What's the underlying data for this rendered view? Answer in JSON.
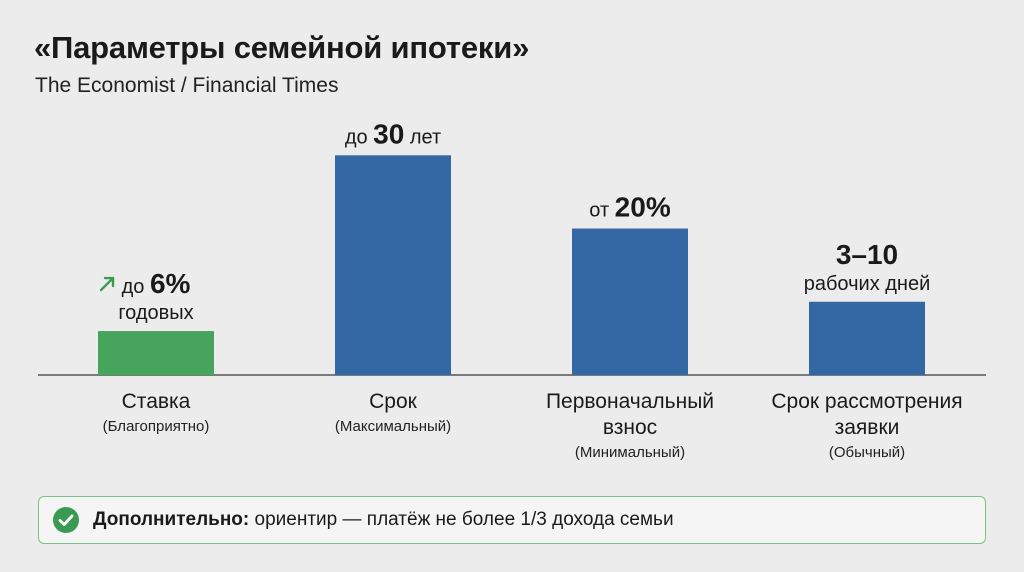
{
  "title": "«Параметры семейной ипотеки»",
  "subtitle": "The Economist / Financial Times",
  "colors": {
    "green": "#47a45c",
    "blue": "#3468a4",
    "axis": "#555555",
    "trend_arrow": "#3a9a52"
  },
  "chart_data": {
    "type": "bar",
    "title": "«Параметры семейной ипотеки»",
    "subtitle": "The Economist / Financial Times",
    "xlabel": "",
    "ylabel": "",
    "grid": false,
    "categories": [
      [
        "Ставка"
      ],
      [
        "Срок"
      ],
      [
        "Первоначальный",
        "взнос"
      ],
      [
        "Срок рассмотрения",
        "заявки"
      ]
    ],
    "category_notes": [
      "(Благоприятно)",
      "(Максимальный)",
      "(Минимальный)",
      "(Обычный)"
    ],
    "values": [
      6,
      30,
      20,
      10
    ],
    "bar_colors": [
      "#47a45c",
      "#3468a4",
      "#3468a4",
      "#3468a4"
    ],
    "data_labels": [
      {
        "prefix": "до ",
        "value": "6%",
        "suffix": "",
        "second_line": "годовых",
        "icon": "trend-up-arrow-icon"
      },
      {
        "prefix": "до ",
        "value": "30",
        "suffix": " лет",
        "second_line": "",
        "icon": ""
      },
      {
        "prefix": "от ",
        "value": "20%",
        "suffix": "",
        "second_line": "",
        "icon": ""
      },
      {
        "prefix": "",
        "value": "3–10",
        "suffix": "",
        "second_line": "рабочих дней",
        "icon": ""
      }
    ],
    "ylim": [
      0,
      34
    ]
  },
  "footer": {
    "label": "Дополнительно:",
    "text": " ориентир — платёж не более 1/3 дохода семьи",
    "icon": "check-circle-icon"
  }
}
